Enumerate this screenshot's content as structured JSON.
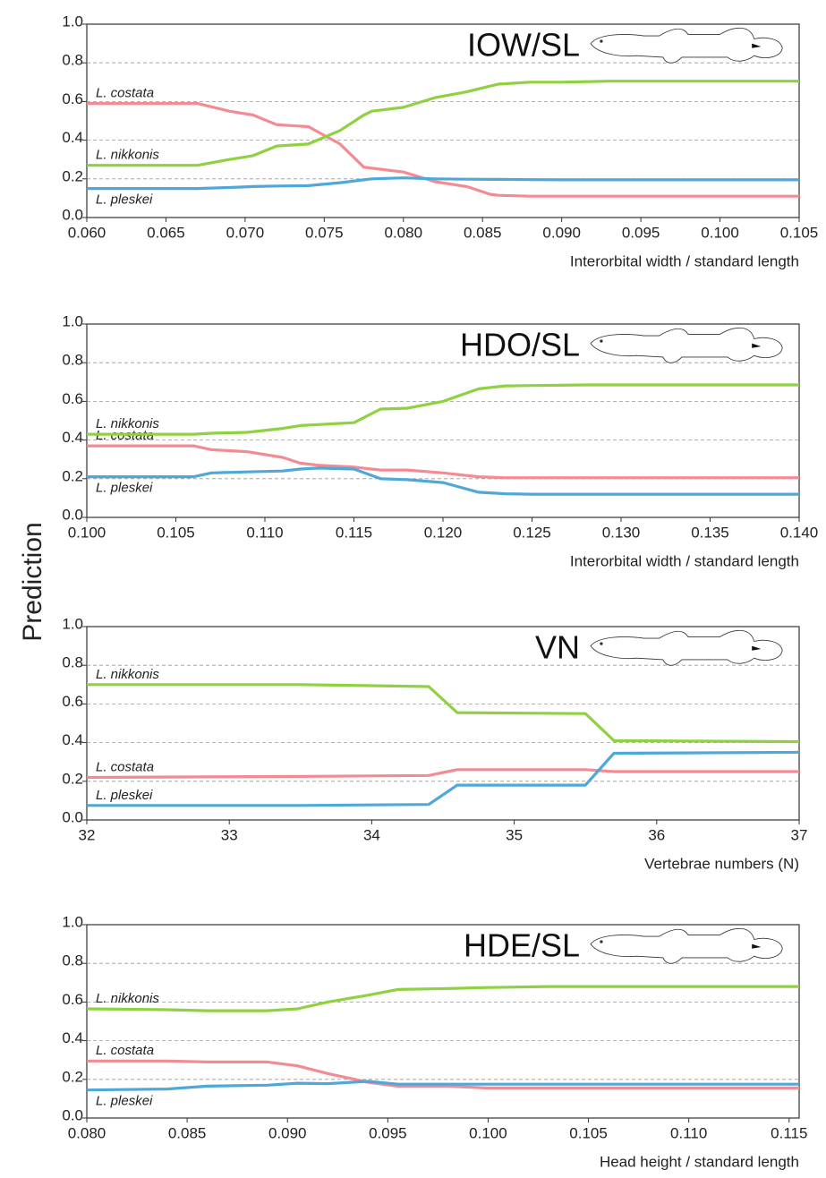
{
  "ylabel": "Prediction",
  "chart_data": [
    {
      "type": "line",
      "title": "IOW/SL",
      "xlabel": "Interorbital width / standard length",
      "xlim": [
        0.06,
        0.105
      ],
      "xticks": [
        {
          "value": 0.06,
          "label": "0.060"
        },
        {
          "value": 0.065,
          "label": "0.065"
        },
        {
          "value": 0.07,
          "label": "0.070"
        },
        {
          "value": 0.075,
          "label": "0.075"
        },
        {
          "value": 0.08,
          "label": "0.080"
        },
        {
          "value": 0.085,
          "label": "0.085"
        },
        {
          "value": 0.09,
          "label": "0.090"
        },
        {
          "value": 0.095,
          "label": "0.095"
        },
        {
          "value": 0.1,
          "label": "0.100"
        },
        {
          "value": 0.105,
          "label": "0.105"
        }
      ],
      "ylim": [
        0,
        1
      ],
      "yticks": [
        {
          "value": 0,
          "label": "0.0"
        },
        0.2,
        0.4,
        0.6,
        0.8,
        {
          "value": 1,
          "label": "1.0"
        }
      ],
      "grid": true,
      "x": [
        0.06,
        0.067,
        0.069,
        0.0705,
        0.072,
        0.074,
        0.076,
        0.0775,
        0.078,
        0.08,
        0.082,
        0.084,
        0.0855,
        0.086,
        0.088,
        0.09,
        0.093,
        0.105
      ],
      "series": [
        {
          "name": "L. costata",
          "color": "#f28b92",
          "values": [
            0.59,
            0.59,
            0.55,
            0.53,
            0.48,
            0.47,
            0.38,
            0.26,
            0.255,
            0.235,
            0.185,
            0.16,
            0.12,
            0.115,
            0.11,
            0.11,
            0.11,
            0.11
          ]
        },
        {
          "name": "L. nikkonis",
          "color": "#8fd140",
          "values": [
            0.27,
            0.27,
            0.3,
            0.32,
            0.37,
            0.38,
            0.45,
            0.53,
            0.55,
            0.57,
            0.62,
            0.65,
            0.68,
            0.69,
            0.7,
            0.7,
            0.705,
            0.705
          ]
        },
        {
          "name": "L. pleskei",
          "color": "#4fa8d8",
          "values": [
            0.15,
            0.15,
            0.155,
            0.16,
            0.163,
            0.165,
            0.18,
            0.195,
            0.2,
            0.205,
            0.2,
            0.198,
            0.197,
            0.197,
            0.196,
            0.195,
            0.195,
            0.195
          ]
        }
      ]
    },
    {
      "type": "line",
      "title": "HDO/SL",
      "xlabel": "Interorbital width / standard length",
      "xlim": [
        0.1,
        0.14
      ],
      "xticks": [
        {
          "value": 0.1,
          "label": "0.100"
        },
        {
          "value": 0.105,
          "label": "0.105"
        },
        {
          "value": 0.11,
          "label": "0.110"
        },
        {
          "value": 0.115,
          "label": "0.115"
        },
        {
          "value": 0.12,
          "label": "0.120"
        },
        {
          "value": 0.125,
          "label": "0.125"
        },
        {
          "value": 0.13,
          "label": "0.130"
        },
        {
          "value": 0.135,
          "label": "0.135"
        },
        {
          "value": 0.14,
          "label": "0.140"
        }
      ],
      "ylim": [
        0,
        1
      ],
      "yticks": [
        {
          "value": 0,
          "label": "0.0"
        },
        0.2,
        0.4,
        0.6,
        0.8,
        {
          "value": 1,
          "label": "1.0"
        }
      ],
      "grid": true,
      "x": [
        0.1,
        0.106,
        0.107,
        0.109,
        0.111,
        0.112,
        0.113,
        0.115,
        0.1165,
        0.118,
        0.12,
        0.122,
        0.1235,
        0.125,
        0.128,
        0.14
      ],
      "series": [
        {
          "name": "L. costata",
          "color": "#f28b92",
          "values": [
            0.37,
            0.37,
            0.35,
            0.34,
            0.31,
            0.28,
            0.27,
            0.26,
            0.245,
            0.245,
            0.23,
            0.21,
            0.205,
            0.205,
            0.205,
            0.205
          ]
        },
        {
          "name": "L. nikkonis",
          "color": "#8fd140",
          "values": [
            0.43,
            0.43,
            0.435,
            0.44,
            0.46,
            0.475,
            0.48,
            0.49,
            0.56,
            0.565,
            0.6,
            0.665,
            0.68,
            0.682,
            0.685,
            0.685
          ]
        },
        {
          "name": "L. pleskei",
          "color": "#4fa8d8",
          "values": [
            0.21,
            0.21,
            0.23,
            0.235,
            0.24,
            0.25,
            0.255,
            0.25,
            0.2,
            0.195,
            0.18,
            0.13,
            0.122,
            0.12,
            0.12,
            0.12
          ]
        }
      ]
    },
    {
      "type": "line",
      "title": "VN",
      "xlabel": "Vertebrae numbers  (N)",
      "xlim": [
        32,
        37
      ],
      "xticks": [
        32,
        33,
        34,
        35,
        36,
        37
      ],
      "ylim": [
        0,
        1
      ],
      "yticks": [
        {
          "value": 0,
          "label": "0.0"
        },
        0.2,
        0.4,
        0.6,
        0.8,
        {
          "value": 1,
          "label": "1.0"
        }
      ],
      "grid": true,
      "x": [
        32,
        33.5,
        34.4,
        34.6,
        35.5,
        35.7,
        37
      ],
      "series": [
        {
          "name": "L. costata",
          "color": "#f28b92",
          "values": [
            0.22,
            0.225,
            0.23,
            0.26,
            0.26,
            0.25,
            0.25
          ]
        },
        {
          "name": "L. nikkonis",
          "color": "#8fd140",
          "values": [
            0.7,
            0.7,
            0.69,
            0.555,
            0.55,
            0.41,
            0.405
          ]
        },
        {
          "name": "L. pleskei",
          "color": "#4fa8d8",
          "values": [
            0.075,
            0.075,
            0.08,
            0.18,
            0.18,
            0.345,
            0.35
          ]
        }
      ]
    },
    {
      "type": "line",
      "title": "HDE/SL",
      "xlabel": "Head height / standard length",
      "xlim": [
        0.08,
        0.1155
      ],
      "xticks": [
        {
          "value": 0.08,
          "label": "0.080"
        },
        {
          "value": 0.085,
          "label": "0.085"
        },
        {
          "value": 0.09,
          "label": "0.090"
        },
        {
          "value": 0.095,
          "label": "0.095"
        },
        {
          "value": 0.1,
          "label": "0.100"
        },
        {
          "value": 0.105,
          "label": "0.105"
        },
        {
          "value": 0.11,
          "label": "0.110"
        },
        {
          "value": 0.115,
          "label": "0.115"
        }
      ],
      "ylim": [
        0,
        1
      ],
      "yticks": [
        {
          "value": 0,
          "label": "0.0"
        },
        0.2,
        0.4,
        0.6,
        0.8,
        {
          "value": 1,
          "label": "1.0"
        }
      ],
      "grid": true,
      "x": [
        0.08,
        0.084,
        0.086,
        0.089,
        0.0905,
        0.092,
        0.094,
        0.0955,
        0.098,
        0.1,
        0.103,
        0.1155
      ],
      "series": [
        {
          "name": "L. costata",
          "color": "#f28b92",
          "values": [
            0.295,
            0.295,
            0.29,
            0.29,
            0.27,
            0.23,
            0.185,
            0.165,
            0.165,
            0.155,
            0.155,
            0.155
          ]
        },
        {
          "name": "L. nikkonis",
          "color": "#8fd140",
          "values": [
            0.565,
            0.56,
            0.555,
            0.555,
            0.565,
            0.6,
            0.635,
            0.665,
            0.67,
            0.675,
            0.68,
            0.68
          ]
        },
        {
          "name": "L. pleskei",
          "color": "#4fa8d8",
          "values": [
            0.145,
            0.15,
            0.165,
            0.17,
            0.18,
            0.178,
            0.19,
            0.175,
            0.175,
            0.175,
            0.175,
            0.175
          ]
        }
      ]
    }
  ]
}
